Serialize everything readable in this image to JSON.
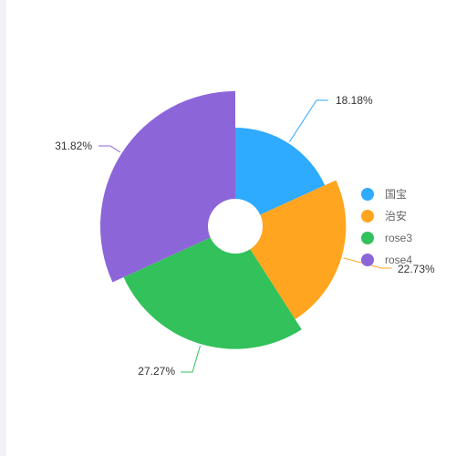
{
  "chart_data": {
    "type": "pie",
    "subtype": "rose",
    "categories": [
      "国宝",
      "治安",
      "rose3",
      "rose4"
    ],
    "values": [
      18.18,
      22.73,
      27.27,
      31.82
    ],
    "value_labels": [
      "18.18%",
      "22.73%",
      "27.27%",
      "31.82%"
    ],
    "colors": [
      "#2eaaff",
      "#ffa51f",
      "#32c15a",
      "#8c66d8"
    ],
    "legend": "right",
    "title": ""
  },
  "legend": {
    "items": [
      {
        "label": "国宝",
        "color": "#2eaaff"
      },
      {
        "label": "治安",
        "color": "#ffa51f"
      },
      {
        "label": "rose3",
        "color": "#32c15a"
      },
      {
        "label": "rose4",
        "color": "#8c66d8"
      }
    ]
  }
}
